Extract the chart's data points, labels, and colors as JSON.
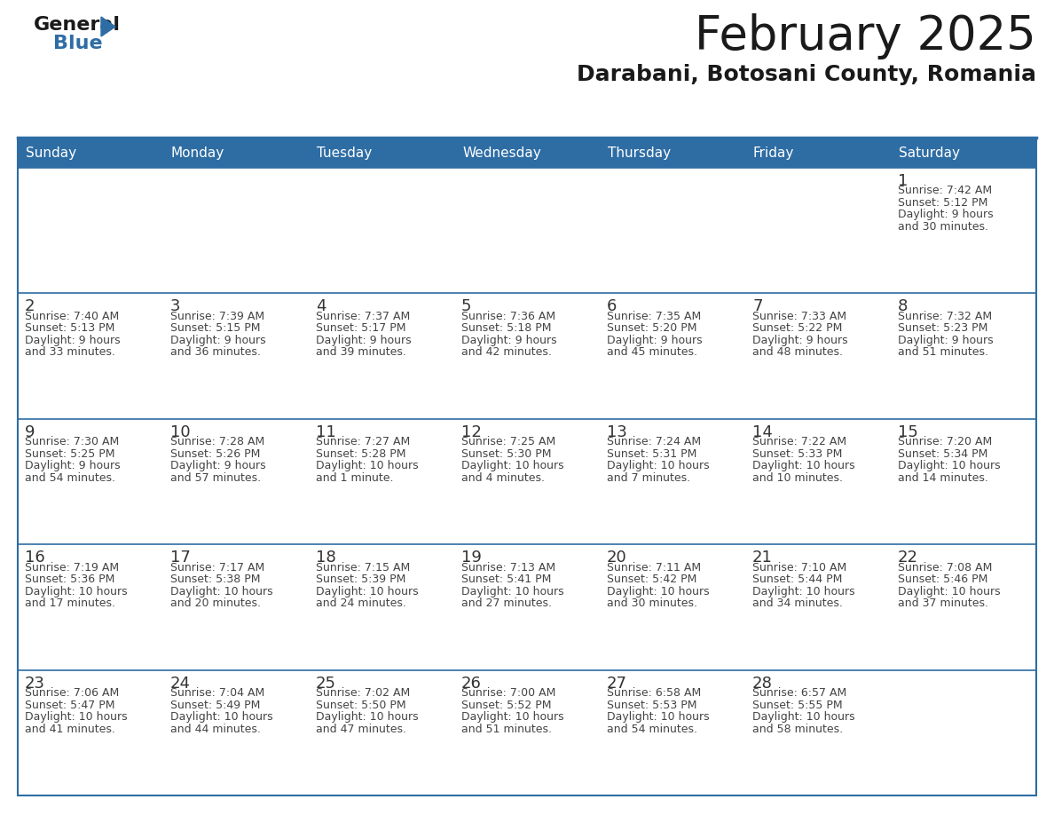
{
  "title": "February 2025",
  "subtitle": "Darabani, Botosani County, Romania",
  "header_bg": "#2E6DA4",
  "header_text_color": "#FFFFFF",
  "cell_bg": "#FFFFFF",
  "text_color": "#444444",
  "day_number_color": "#333333",
  "day_headers": [
    "Sunday",
    "Monday",
    "Tuesday",
    "Wednesday",
    "Thursday",
    "Friday",
    "Saturday"
  ],
  "calendar": [
    [
      null,
      null,
      null,
      null,
      null,
      null,
      {
        "day": "1",
        "sunrise": "7:42 AM",
        "sunset": "5:12 PM",
        "daylight1": "9 hours",
        "daylight2": "and 30 minutes."
      }
    ],
    [
      {
        "day": "2",
        "sunrise": "7:40 AM",
        "sunset": "5:13 PM",
        "daylight1": "9 hours",
        "daylight2": "and 33 minutes."
      },
      {
        "day": "3",
        "sunrise": "7:39 AM",
        "sunset": "5:15 PM",
        "daylight1": "9 hours",
        "daylight2": "and 36 minutes."
      },
      {
        "day": "4",
        "sunrise": "7:37 AM",
        "sunset": "5:17 PM",
        "daylight1": "9 hours",
        "daylight2": "and 39 minutes."
      },
      {
        "day": "5",
        "sunrise": "7:36 AM",
        "sunset": "5:18 PM",
        "daylight1": "9 hours",
        "daylight2": "and 42 minutes."
      },
      {
        "day": "6",
        "sunrise": "7:35 AM",
        "sunset": "5:20 PM",
        "daylight1": "9 hours",
        "daylight2": "and 45 minutes."
      },
      {
        "day": "7",
        "sunrise": "7:33 AM",
        "sunset": "5:22 PM",
        "daylight1": "9 hours",
        "daylight2": "and 48 minutes."
      },
      {
        "day": "8",
        "sunrise": "7:32 AM",
        "sunset": "5:23 PM",
        "daylight1": "9 hours",
        "daylight2": "and 51 minutes."
      }
    ],
    [
      {
        "day": "9",
        "sunrise": "7:30 AM",
        "sunset": "5:25 PM",
        "daylight1": "9 hours",
        "daylight2": "and 54 minutes."
      },
      {
        "day": "10",
        "sunrise": "7:28 AM",
        "sunset": "5:26 PM",
        "daylight1": "9 hours",
        "daylight2": "and 57 minutes."
      },
      {
        "day": "11",
        "sunrise": "7:27 AM",
        "sunset": "5:28 PM",
        "daylight1": "10 hours",
        "daylight2": "and 1 minute."
      },
      {
        "day": "12",
        "sunrise": "7:25 AM",
        "sunset": "5:30 PM",
        "daylight1": "10 hours",
        "daylight2": "and 4 minutes."
      },
      {
        "day": "13",
        "sunrise": "7:24 AM",
        "sunset": "5:31 PM",
        "daylight1": "10 hours",
        "daylight2": "and 7 minutes."
      },
      {
        "day": "14",
        "sunrise": "7:22 AM",
        "sunset": "5:33 PM",
        "daylight1": "10 hours",
        "daylight2": "and 10 minutes."
      },
      {
        "day": "15",
        "sunrise": "7:20 AM",
        "sunset": "5:34 PM",
        "daylight1": "10 hours",
        "daylight2": "and 14 minutes."
      }
    ],
    [
      {
        "day": "16",
        "sunrise": "7:19 AM",
        "sunset": "5:36 PM",
        "daylight1": "10 hours",
        "daylight2": "and 17 minutes."
      },
      {
        "day": "17",
        "sunrise": "7:17 AM",
        "sunset": "5:38 PM",
        "daylight1": "10 hours",
        "daylight2": "and 20 minutes."
      },
      {
        "day": "18",
        "sunrise": "7:15 AM",
        "sunset": "5:39 PM",
        "daylight1": "10 hours",
        "daylight2": "and 24 minutes."
      },
      {
        "day": "19",
        "sunrise": "7:13 AM",
        "sunset": "5:41 PM",
        "daylight1": "10 hours",
        "daylight2": "and 27 minutes."
      },
      {
        "day": "20",
        "sunrise": "7:11 AM",
        "sunset": "5:42 PM",
        "daylight1": "10 hours",
        "daylight2": "and 30 minutes."
      },
      {
        "day": "21",
        "sunrise": "7:10 AM",
        "sunset": "5:44 PM",
        "daylight1": "10 hours",
        "daylight2": "and 34 minutes."
      },
      {
        "day": "22",
        "sunrise": "7:08 AM",
        "sunset": "5:46 PM",
        "daylight1": "10 hours",
        "daylight2": "and 37 minutes."
      }
    ],
    [
      {
        "day": "23",
        "sunrise": "7:06 AM",
        "sunset": "5:47 PM",
        "daylight1": "10 hours",
        "daylight2": "and 41 minutes."
      },
      {
        "day": "24",
        "sunrise": "7:04 AM",
        "sunset": "5:49 PM",
        "daylight1": "10 hours",
        "daylight2": "and 44 minutes."
      },
      {
        "day": "25",
        "sunrise": "7:02 AM",
        "sunset": "5:50 PM",
        "daylight1": "10 hours",
        "daylight2": "and 47 minutes."
      },
      {
        "day": "26",
        "sunrise": "7:00 AM",
        "sunset": "5:52 PM",
        "daylight1": "10 hours",
        "daylight2": "and 51 minutes."
      },
      {
        "day": "27",
        "sunrise": "6:58 AM",
        "sunset": "5:53 PM",
        "daylight1": "10 hours",
        "daylight2": "and 54 minutes."
      },
      {
        "day": "28",
        "sunrise": "6:57 AM",
        "sunset": "5:55 PM",
        "daylight1": "10 hours",
        "daylight2": "and 58 minutes."
      },
      null
    ]
  ],
  "logo_general_color": "#1a1a1a",
  "logo_blue_color": "#2E6DA4",
  "logo_triangle_color": "#2E6DA4",
  "title_fontsize": 38,
  "subtitle_fontsize": 18,
  "header_fontsize": 11,
  "day_number_fontsize": 13,
  "cell_text_fontsize": 9
}
